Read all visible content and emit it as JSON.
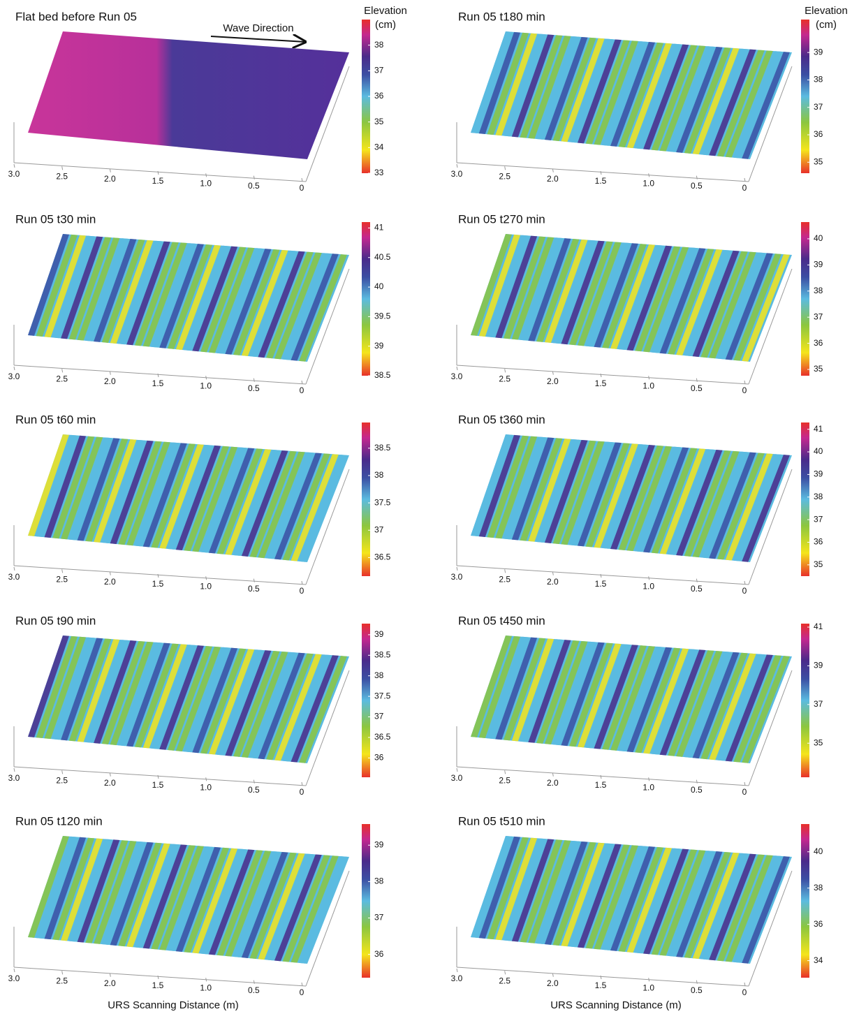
{
  "chart_data": [
    {
      "type": "surface",
      "title": "Flat bed before Run 05",
      "annotation": "Wave Direction",
      "colorbar_label": "Elevation (cm)",
      "xlim": [
        3,
        0
      ],
      "xticks": [
        {
          "value": 3,
          "label": "3.0"
        },
        2.5,
        {
          "value": 2,
          "label": "2.0"
        },
        1.5,
        {
          "value": 1,
          "label": "1.0"
        },
        0.5,
        0
      ],
      "clim": [
        33,
        39
      ],
      "cticks": [
        33,
        34,
        35,
        36,
        37,
        38
      ]
    },
    {
      "type": "surface",
      "title": "Run 05 t180 min",
      "colorbar_label": "Elevation (cm)",
      "xlim": [
        3,
        0
      ],
      "xticks": [
        {
          "value": 3,
          "label": "3.0"
        },
        2.5,
        {
          "value": 2,
          "label": "2.0"
        },
        1.5,
        {
          "value": 1,
          "label": "1.0"
        },
        0.5,
        0
      ],
      "clim": [
        34.6,
        40.2
      ],
      "cticks": [
        35,
        36,
        37,
        38,
        39
      ]
    },
    {
      "type": "surface",
      "title": "Run 05 t30 min",
      "xlim": [
        3,
        0
      ],
      "xticks": [
        {
          "value": 3,
          "label": "3.0"
        },
        2.5,
        {
          "value": 2,
          "label": "2.0"
        },
        1.5,
        {
          "value": 1,
          "label": "1.0"
        },
        0.5,
        0
      ],
      "clim": [
        38.5,
        41.1
      ],
      "cticks": [
        38.5,
        39,
        39.5,
        40,
        40.5,
        41
      ]
    },
    {
      "type": "surface",
      "title": "Run 05 t270 min",
      "xlim": [
        3,
        0
      ],
      "xticks": [
        {
          "value": 3,
          "label": "3.0"
        },
        2.5,
        {
          "value": 2,
          "label": "2.0"
        },
        1.5,
        {
          "value": 1,
          "label": "1.0"
        },
        0.5,
        0
      ],
      "clim": [
        34.76,
        40.64
      ],
      "cticks": [
        35,
        36,
        37,
        38,
        39,
        40
      ]
    },
    {
      "type": "surface",
      "title": "Run 05 t60 min",
      "xlim": [
        3,
        0
      ],
      "xticks": [
        {
          "value": 3,
          "label": "3.0"
        },
        2.5,
        {
          "value": 2,
          "label": "2.0"
        },
        1.5,
        {
          "value": 1,
          "label": "1.0"
        },
        0.5,
        0
      ],
      "clim": [
        36.16,
        38.97
      ],
      "cticks": [
        36.5,
        37,
        37.5,
        38,
        38.5
      ]
    },
    {
      "type": "surface",
      "title": "Run 05 t360 min",
      "xlim": [
        3,
        0
      ],
      "xticks": [
        {
          "value": 3,
          "label": "3.0"
        },
        2.5,
        {
          "value": 2,
          "label": "2.0"
        },
        1.5,
        {
          "value": 1,
          "label": "1.0"
        },
        0.5,
        0
      ],
      "clim": [
        34.5,
        41.3
      ],
      "cticks": [
        35,
        36,
        37,
        38,
        39,
        40,
        41
      ]
    },
    {
      "type": "surface",
      "title": "Run 05 t90 min",
      "xlim": [
        3,
        0
      ],
      "xticks": [
        {
          "value": 3,
          "label": "3.0"
        },
        2.5,
        {
          "value": 2,
          "label": "2.0"
        },
        1.5,
        {
          "value": 1,
          "label": "1.0"
        },
        0.5,
        0
      ],
      "clim": [
        35.53,
        39.27
      ],
      "cticks": [
        36,
        36.5,
        37,
        37.5,
        38,
        38.5,
        39
      ]
    },
    {
      "type": "surface",
      "title": "Run 05 t450 min",
      "xlim": [
        3,
        0
      ],
      "xticks": [
        {
          "value": 3,
          "label": "3.0"
        },
        2.5,
        {
          "value": 2,
          "label": "2.0"
        },
        1.5,
        {
          "value": 1,
          "label": "1.0"
        },
        0.5,
        0
      ],
      "clim": [
        33.24,
        41.18
      ],
      "cticks": [
        35,
        37,
        39,
        41
      ]
    },
    {
      "type": "surface",
      "title": "Run 05 t120 min",
      "xlabel": "URS Scanning Distance (m)",
      "xlim": [
        3,
        0
      ],
      "xticks": [
        {
          "value": 3,
          "label": "3.0"
        },
        2.5,
        {
          "value": 2,
          "label": "2.0"
        },
        1.5,
        {
          "value": 1,
          "label": "1.0"
        },
        0.5,
        0
      ],
      "clim": [
        35.36,
        39.58
      ],
      "cticks": [
        36,
        37,
        38,
        39
      ]
    },
    {
      "type": "surface",
      "title": "Run 05 t510 min",
      "xlabel": "URS Scanning Distance (m)",
      "xlim": [
        3,
        0
      ],
      "xticks": [
        {
          "value": 3,
          "label": "3.0"
        },
        2.5,
        {
          "value": 2,
          "label": "2.0"
        },
        1.5,
        {
          "value": 1,
          "label": "1.0"
        },
        0.5,
        0
      ],
      "clim": [
        33.06,
        41.53
      ],
      "cticks": [
        34,
        36,
        38,
        40
      ]
    }
  ]
}
